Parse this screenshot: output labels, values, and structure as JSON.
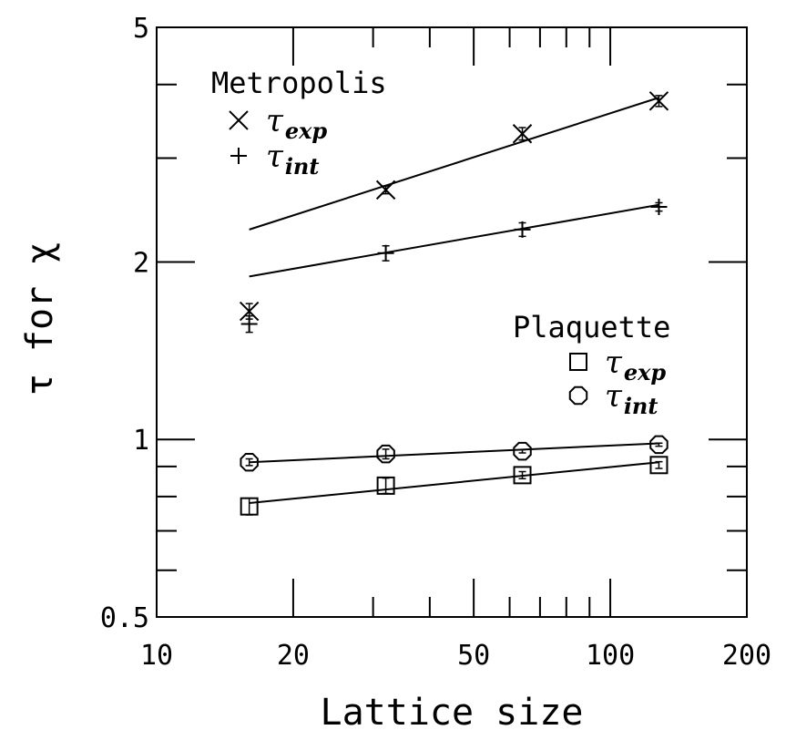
{
  "chart_data": {
    "type": "scatter",
    "xscale": "log",
    "yscale": "log",
    "xlabel": "Lattice size",
    "ylabel": "τ for χ",
    "xlim": [
      10,
      200
    ],
    "ylim": [
      0.5,
      5
    ],
    "xticks_labeled": [
      "10",
      "20",
      "50",
      "100",
      "200"
    ],
    "yticks_labeled": [
      "0.5",
      "1",
      "2",
      "5"
    ],
    "legend_groups": [
      {
        "title": "Metropolis",
        "entries": [
          {
            "symbol": "τ",
            "sub": "exp",
            "series": "met_exp",
            "marker": "x"
          },
          {
            "symbol": "τ",
            "sub": "int",
            "series": "met_int",
            "marker": "+"
          }
        ]
      },
      {
        "title": "Plaquette",
        "entries": [
          {
            "symbol": "τ",
            "sub": "exp",
            "series": "plaq_exp",
            "marker": "square"
          },
          {
            "symbol": "τ",
            "sub": "int",
            "series": "plaq_int",
            "marker": "octagon"
          }
        ]
      }
    ],
    "series": [
      {
        "id": "met_exp",
        "marker": "x",
        "points": [
          {
            "x": 16,
            "y": 1.65,
            "err": 0.05
          },
          {
            "x": 32,
            "y": 2.65,
            "err": 0.04
          },
          {
            "x": 64,
            "y": 3.3,
            "err": 0.08
          },
          {
            "x": 128,
            "y": 3.75,
            "err": 0.08
          }
        ],
        "fit": {
          "x": [
            16,
            128
          ],
          "y": [
            2.27,
            3.8
          ]
        }
      },
      {
        "id": "met_int",
        "marker": "+",
        "points": [
          {
            "x": 16,
            "y": 1.57,
            "err": 0.05
          },
          {
            "x": 32,
            "y": 2.07,
            "err": 0.06
          },
          {
            "x": 64,
            "y": 2.27,
            "err": 0.06
          },
          {
            "x": 128,
            "y": 2.48,
            "err": 0.04
          }
        ],
        "fit": {
          "x": [
            16,
            128
          ],
          "y": [
            1.89,
            2.5
          ]
        }
      },
      {
        "id": "plaq_exp",
        "marker": "square",
        "points": [
          {
            "x": 16,
            "y": 0.77,
            "err": 0.025
          },
          {
            "x": 32,
            "y": 0.835,
            "err": 0.025
          },
          {
            "x": 64,
            "y": 0.87,
            "err": 0.012
          },
          {
            "x": 128,
            "y": 0.905,
            "err": 0.012
          }
        ],
        "fit": {
          "x": [
            16,
            128
          ],
          "y": [
            0.78,
            0.915
          ]
        }
      },
      {
        "id": "plaq_int",
        "marker": "octagon",
        "points": [
          {
            "x": 16,
            "y": 0.915,
            "err": 0.012
          },
          {
            "x": 32,
            "y": 0.945,
            "err": 0.018
          },
          {
            "x": 64,
            "y": 0.955,
            "err": 0.006
          },
          {
            "x": 128,
            "y": 0.98,
            "err": 0.006
          }
        ],
        "fit": {
          "x": [
            16,
            128
          ],
          "y": [
            0.915,
            0.985
          ]
        }
      }
    ]
  }
}
